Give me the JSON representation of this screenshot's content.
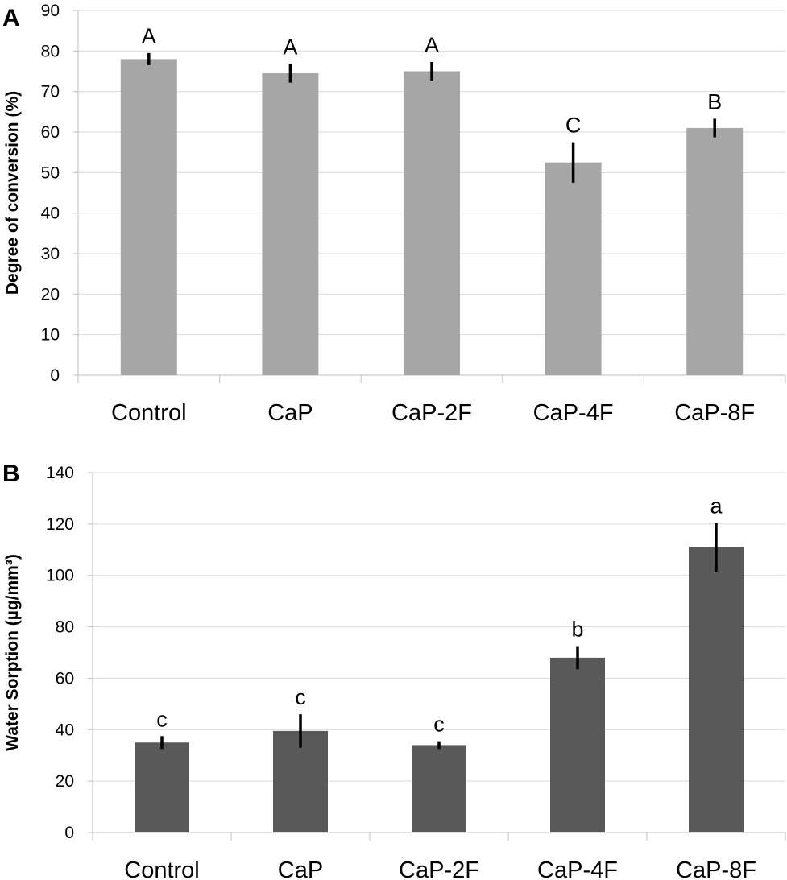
{
  "chart_data": [
    {
      "type": "bar",
      "panel_label": "A",
      "categories": [
        "Control",
        "CaP",
        "CaP-2F",
        "CaP-4F",
        "CaP-8F"
      ],
      "values": [
        78,
        74.5,
        75,
        52.5,
        61
      ],
      "errors": [
        1.5,
        2.3,
        2.3,
        5,
        2.3
      ],
      "significance": [
        "A",
        "A",
        "A",
        "C",
        "B"
      ],
      "ylabel": "Degree of conversion (%)",
      "xlabel": "",
      "ylim": [
        0,
        90
      ],
      "yticks": [
        0,
        10,
        20,
        30,
        40,
        50,
        60,
        70,
        80,
        90
      ],
      "color": "#a6a6a6",
      "grid": true
    },
    {
      "type": "bar",
      "panel_label": "B",
      "categories": [
        "Control",
        "CaP",
        "CaP-2F",
        "CaP-4F",
        "CaP-8F"
      ],
      "values": [
        35,
        39.5,
        34,
        68,
        111
      ],
      "errors": [
        2.5,
        6.5,
        1.5,
        4.5,
        9.5
      ],
      "significance": [
        "c",
        "c",
        "c",
        "b",
        "a"
      ],
      "ylabel": "Water Sorption (µg/mm³)",
      "xlabel": "",
      "ylim": [
        0,
        140
      ],
      "yticks": [
        0,
        20,
        40,
        60,
        80,
        100,
        120,
        140
      ],
      "color": "#595959",
      "grid": true
    }
  ]
}
